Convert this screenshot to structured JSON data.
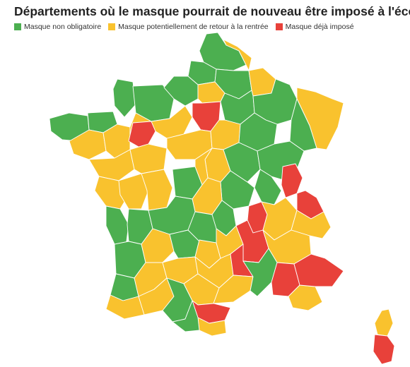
{
  "title": "Départements où le masque pourrait de nouveau être imposé à l'école",
  "colors": {
    "non_obligatoire": "#4caf50",
    "potentiel": "#f9c22e",
    "impose": "#e8413a"
  },
  "legend": [
    {
      "label": "Masque non obligatoire",
      "color": "#4caf50"
    },
    {
      "label": "Masque potentiellement de retour à la rentrée",
      "color": "#f9c22e"
    },
    {
      "label": "Masque déjà imposé",
      "color": "#e8413a"
    }
  ]
}
